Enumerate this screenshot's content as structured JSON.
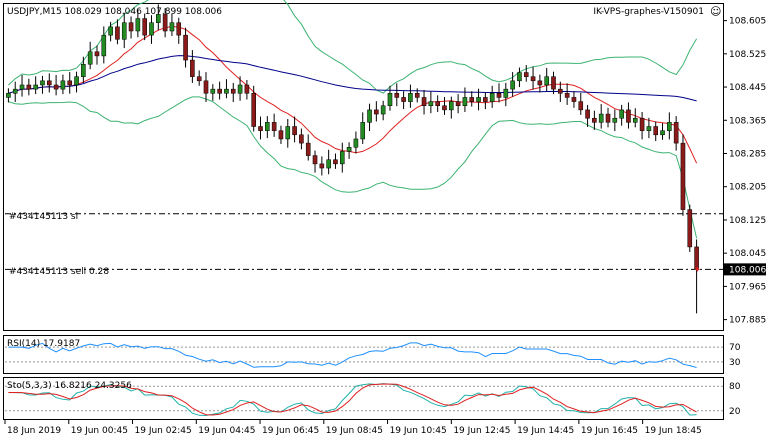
{
  "header": {
    "symbol_info": "USDJPY,M15  108.029 108.046 107.899 108.006",
    "vps_label": "IK-VPS-graphes-V150901",
    "smiley": "☺"
  },
  "order_lines": {
    "sl_label": "#434145113 sl",
    "sell_label": "#434145113 sell 0.28",
    "sl_price": 108.14,
    "sell_price": 108.006
  },
  "indicators": {
    "rsi_label": "RSI(14) 17.9187",
    "stoch_label": "Sto(5,3,3) 16.8216 24.3256"
  },
  "colors": {
    "bull": "#228b22",
    "bear": "#8b1a1a",
    "upper_band": "#3cb371",
    "ma_red": "#e02020",
    "ma_blue": "#00008b",
    "rsi": "#1e90ff",
    "stoch_main": "#20b2aa",
    "stoch_signal": "#e02020"
  },
  "chart_data": {
    "type": "candlestick",
    "symbol": "USDJPY",
    "timeframe": "M15",
    "price_axis": {
      "min": 107.86,
      "max": 108.645,
      "ticks": [
        "108.605",
        "108.525",
        "108.445",
        "108.365",
        "108.285",
        "108.205",
        "108.125",
        "108.045",
        "107.965",
        "107.885"
      ],
      "current_price": "108.006"
    },
    "time_axis": [
      "18 Jun 2019",
      "19 Jun 00:45",
      "19 Jun 02:45",
      "19 Jun 04:45",
      "19 Jun 06:45",
      "19 Jun 08:45",
      "19 Jun 10:45",
      "19 Jun 12:45",
      "19 Jun 14:45",
      "19 Jun 16:45",
      "19 Jun 18:45"
    ],
    "rsi_axis": {
      "range": [
        0,
        100
      ],
      "ticks": [
        "70",
        "30"
      ]
    },
    "stoch_axis": {
      "range": [
        0,
        100
      ],
      "ticks": [
        "80",
        "20"
      ]
    },
    "closes": [
      108.43,
      108.44,
      108.45,
      108.44,
      108.45,
      108.46,
      108.45,
      108.44,
      108.46,
      108.45,
      108.47,
      108.5,
      108.53,
      108.52,
      108.57,
      108.59,
      108.56,
      108.6,
      108.58,
      108.61,
      108.57,
      108.6,
      108.62,
      108.58,
      108.6,
      108.57,
      108.51,
      108.47,
      108.46,
      108.43,
      108.44,
      108.43,
      108.44,
      108.43,
      108.45,
      108.43,
      108.35,
      108.34,
      108.36,
      108.34,
      108.32,
      108.35,
      108.33,
      108.31,
      108.28,
      108.26,
      108.25,
      108.27,
      108.26,
      108.29,
      108.3,
      108.32,
      108.36,
      108.39,
      108.38,
      108.4,
      108.43,
      108.42,
      108.41,
      108.43,
      108.42,
      108.4,
      108.41,
      108.4,
      108.39,
      108.41,
      108.4,
      108.42,
      108.41,
      108.42,
      108.41,
      108.43,
      108.42,
      108.44,
      108.46,
      108.48,
      108.47,
      108.46,
      108.45,
      108.47,
      108.44,
      108.43,
      108.42,
      108.41,
      108.39,
      108.37,
      108.36,
      108.38,
      108.36,
      108.37,
      108.39,
      108.36,
      108.37,
      108.34,
      108.35,
      108.33,
      108.34,
      108.36,
      108.31,
      108.15,
      108.06,
      108.006
    ]
  }
}
